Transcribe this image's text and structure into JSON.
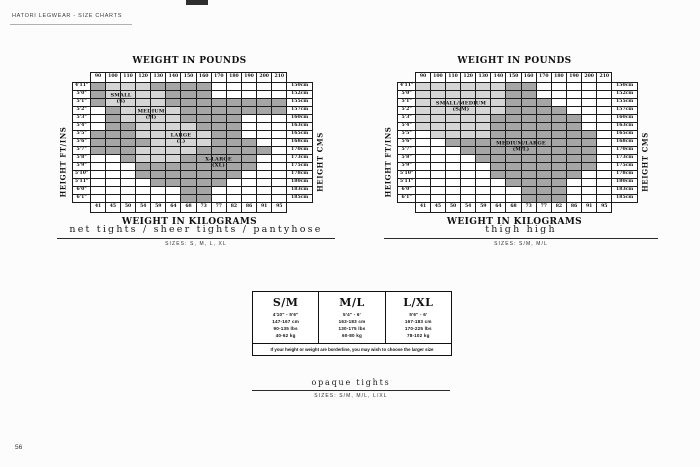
{
  "page": {
    "header": "HATORI LEGWEAR - SIZE CHARTS",
    "page_number": "56"
  },
  "colors": {
    "light": "#d5d5d5",
    "dark": "#a6a6a6",
    "line": "#1c1c1c"
  },
  "shared": {
    "weights_lbs": [
      "90",
      "100",
      "110",
      "120",
      "130",
      "140",
      "150",
      "160",
      "170",
      "180",
      "190",
      "200",
      "210"
    ],
    "weights_kg": [
      "41",
      "45",
      "50",
      "54",
      "59",
      "64",
      "68",
      "73",
      "77",
      "82",
      "86",
      "91",
      "95"
    ],
    "heights_ftin": [
      "4'11\"",
      "5'0\"",
      "5'1\"",
      "5'2\"",
      "5'3\"",
      "5'4\"",
      "5'5\"",
      "5'6\"",
      "5'7\"",
      "5'8\"",
      "5'9\"",
      "5'10\"",
      "5'11\"",
      "6'0\"",
      "6'1\""
    ],
    "heights_cm": [
      "150cm",
      "152cm",
      "155cm",
      "157cm",
      "160cm",
      "163cm",
      "165cm",
      "168cm",
      "170cm",
      "173cm",
      "175cm",
      "178cm",
      "180cm",
      "183cm",
      "185cm"
    ]
  },
  "charts": [
    {
      "title_top": "WEIGHT IN POUNDS",
      "title_bottom": "WEIGHT IN KILOGRAMS",
      "axis_left": "HEIGHT FT/INS",
      "axis_right": "HEIGHT CMS",
      "caption": "net tights / sheer tights / pantyhose",
      "sizes_line": "SIZES: S, M, L, XL",
      "regions": [
        {
          "label": "SMALL",
          "sub": "(S)",
          "row": 2.5,
          "col": 2.5
        },
        {
          "label": "MEDIUM",
          "sub": "(M)",
          "row": 4.5,
          "col": 4.5
        },
        {
          "label": "LARGE",
          "sub": "(L)",
          "row": 7.5,
          "col": 6.5
        },
        {
          "label": "X-LARGE",
          "sub": "(XL)",
          "row": 10.5,
          "col": 9
        }
      ],
      "grid": [
        "dllldddd.....",
        "dllllddd.....",
        "dlllldddddddd",
        ".dllllddddddd",
        ".dlllldddd...",
        ".ddllllddd...",
        "dddllllldd...",
        "ddddllllddd..",
        "dddllllddddd.",
        "..dlllddddd..",
        "...dddddddd..",
        "...ddddddd...",
        "....ddddd....",
        "......dd.....",
        "......dd....."
      ]
    },
    {
      "title_top": "WEIGHT IN POUNDS",
      "title_bottom": "WEIGHT IN KILOGRAMS",
      "axis_left": "HEIGHT FT/INS",
      "axis_right": "HEIGHT CMS",
      "caption": "thigh high",
      "sizes_line": "SIZES: S/M, M/L",
      "regions": [
        {
          "label": "SMALL/MEDIUM",
          "sub": "(S/M)",
          "row": 3.5,
          "col": 3.5
        },
        {
          "label": "MEDIUM/LARGE",
          "sub": "(M/L)",
          "row": 8.5,
          "col": 7.5
        }
      ],
      "grid": [
        "lllllldd.....",
        "lllllldd.....",
        "llllllddd....",
        "lllllldddd...",
        "llllldddddd..",
        "llllldddddd..",
        ".llllddddddd.",
        "..dddddddddd.",
        "...ddddddddd.",
        "....dddddddd.",
        ".....ddddddd.",
        ".....dddddd..",
        "......dddd...",
        ".......ddd...",
        ".......ddd..."
      ]
    }
  ],
  "size_table": {
    "columns": [
      {
        "size": "S/M",
        "height_ft": "4'10\" - 5'6\"",
        "height_cm": "147-167 cm",
        "weight_lbs": "90-135 lbs",
        "weight_kg": "40-62 kg"
      },
      {
        "size": "M/L",
        "height_ft": "5'4\" - 6'",
        "height_cm": "163-183 cm",
        "weight_lbs": "130-175 lbs",
        "weight_kg": "60-80 kg"
      },
      {
        "size": "L/XL",
        "height_ft": "5'6\" - 6'",
        "height_cm": "167-183 cm",
        "weight_lbs": "170-225 lbs",
        "weight_kg": "78-102 kg"
      }
    ],
    "note": "If your height or weight are borderline, you may wish to choose the larger size",
    "caption": "opaque tights",
    "sizes_line": "SIZES: S/M, M/L, L/XL"
  }
}
